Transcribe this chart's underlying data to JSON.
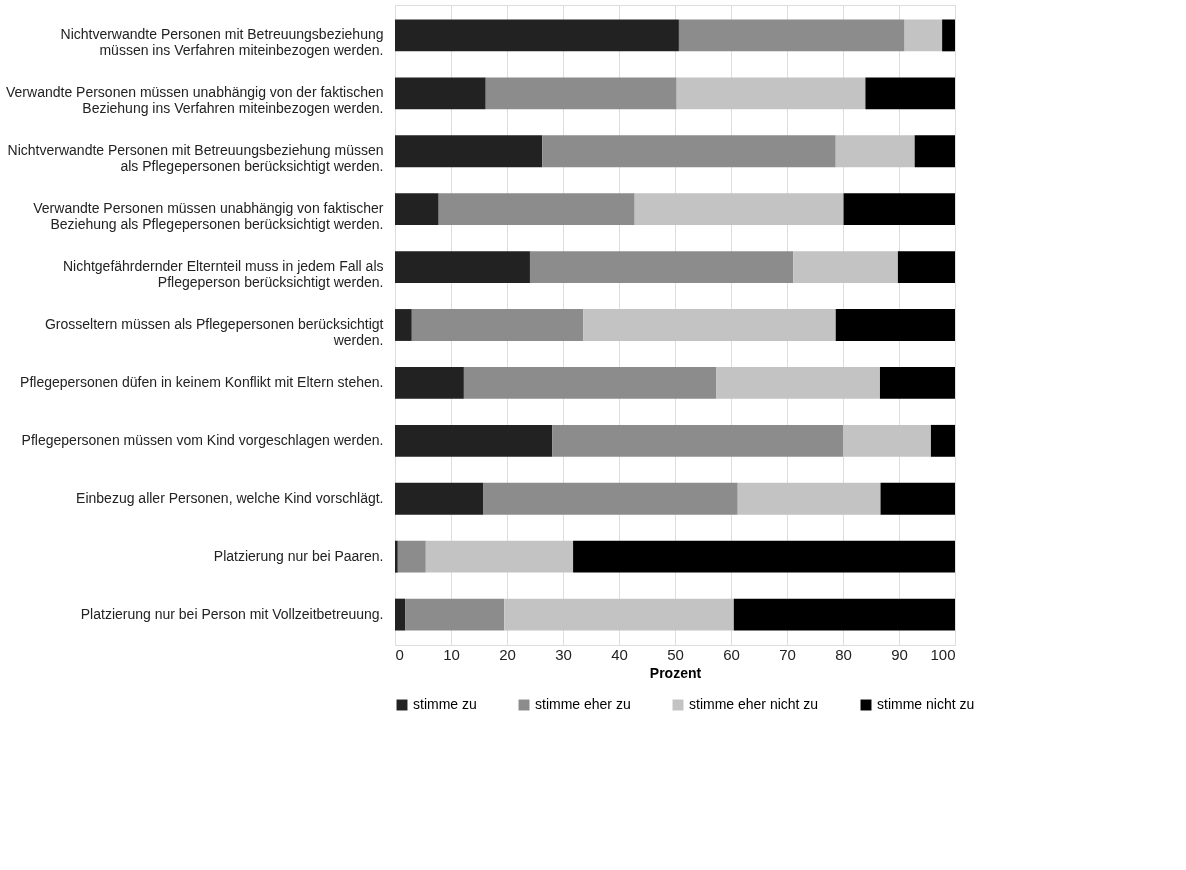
{
  "chart_data": {
    "type": "bar",
    "orientation": "horizontal",
    "stacked": true,
    "xlabel": "Prozent",
    "categories": [
      "Nichtverwandte Personen mit Betreuungsbeziehung\nmüssen ins Verfahren miteinbezogen werden.",
      "Verwandte Personen müssen unabhängig von der faktischen\nBeziehung ins Verfahren miteinbezogen werden.",
      "Nichtverwandte Personen mit Betreuungsbeziehung müssen\nals Pflegepersonen berücksichtigt werden.",
      "Verwandte Personen müssen unabhängig von faktischer\nBeziehung als Pflegepersonen berücksichtigt werden.",
      "Nichtgefährdernder Elternteil muss in jedem Fall als\nPflegeperson berücksichtigt werden.",
      "Grosseltern müssen als Pflegepersonen berücksichtigt\nwerden.",
      "Pflegepersonen düfen in keinem Konflikt mit Eltern stehen.",
      "Pflegepersonen müssen vom Kind vorgeschlagen werden.",
      "Einbezug aller Personen, welche Kind vorschlägt.",
      "Platzierung nur bei Paaren.",
      "Platzierung nur bei Person mit Vollzeitbetreuung."
    ],
    "series": [
      {
        "name": "stimme zu",
        "color": "#222222",
        "values": [
          50.7,
          16.2,
          26.3,
          7.8,
          24.1,
          3.0,
          12.3,
          28.1,
          15.8,
          0.5,
          1.8
        ]
      },
      {
        "name": "stimme eher zu",
        "color": "#8c8c8c",
        "values": [
          40.3,
          34.1,
          52.4,
          35.0,
          47.0,
          30.6,
          45.1,
          51.9,
          45.4,
          5.0,
          17.7
        ]
      },
      {
        "name": "stimme eher nicht zu",
        "color": "#c3c3c3",
        "values": [
          6.7,
          33.7,
          14.1,
          37.3,
          18.7,
          45.1,
          29.2,
          15.7,
          25.5,
          26.3,
          41.0
        ]
      },
      {
        "name": "stimme nicht zu",
        "color": "#000000",
        "values": [
          2.3,
          16.0,
          7.2,
          19.9,
          10.2,
          21.3,
          13.4,
          4.3,
          13.3,
          68.2,
          39.5
        ]
      }
    ],
    "xlim": [
      0,
      100
    ],
    "xticks": [
      0,
      10,
      20,
      30,
      40,
      50,
      60,
      70,
      80,
      90,
      100
    ],
    "grid": "x",
    "legend": "bottom"
  }
}
